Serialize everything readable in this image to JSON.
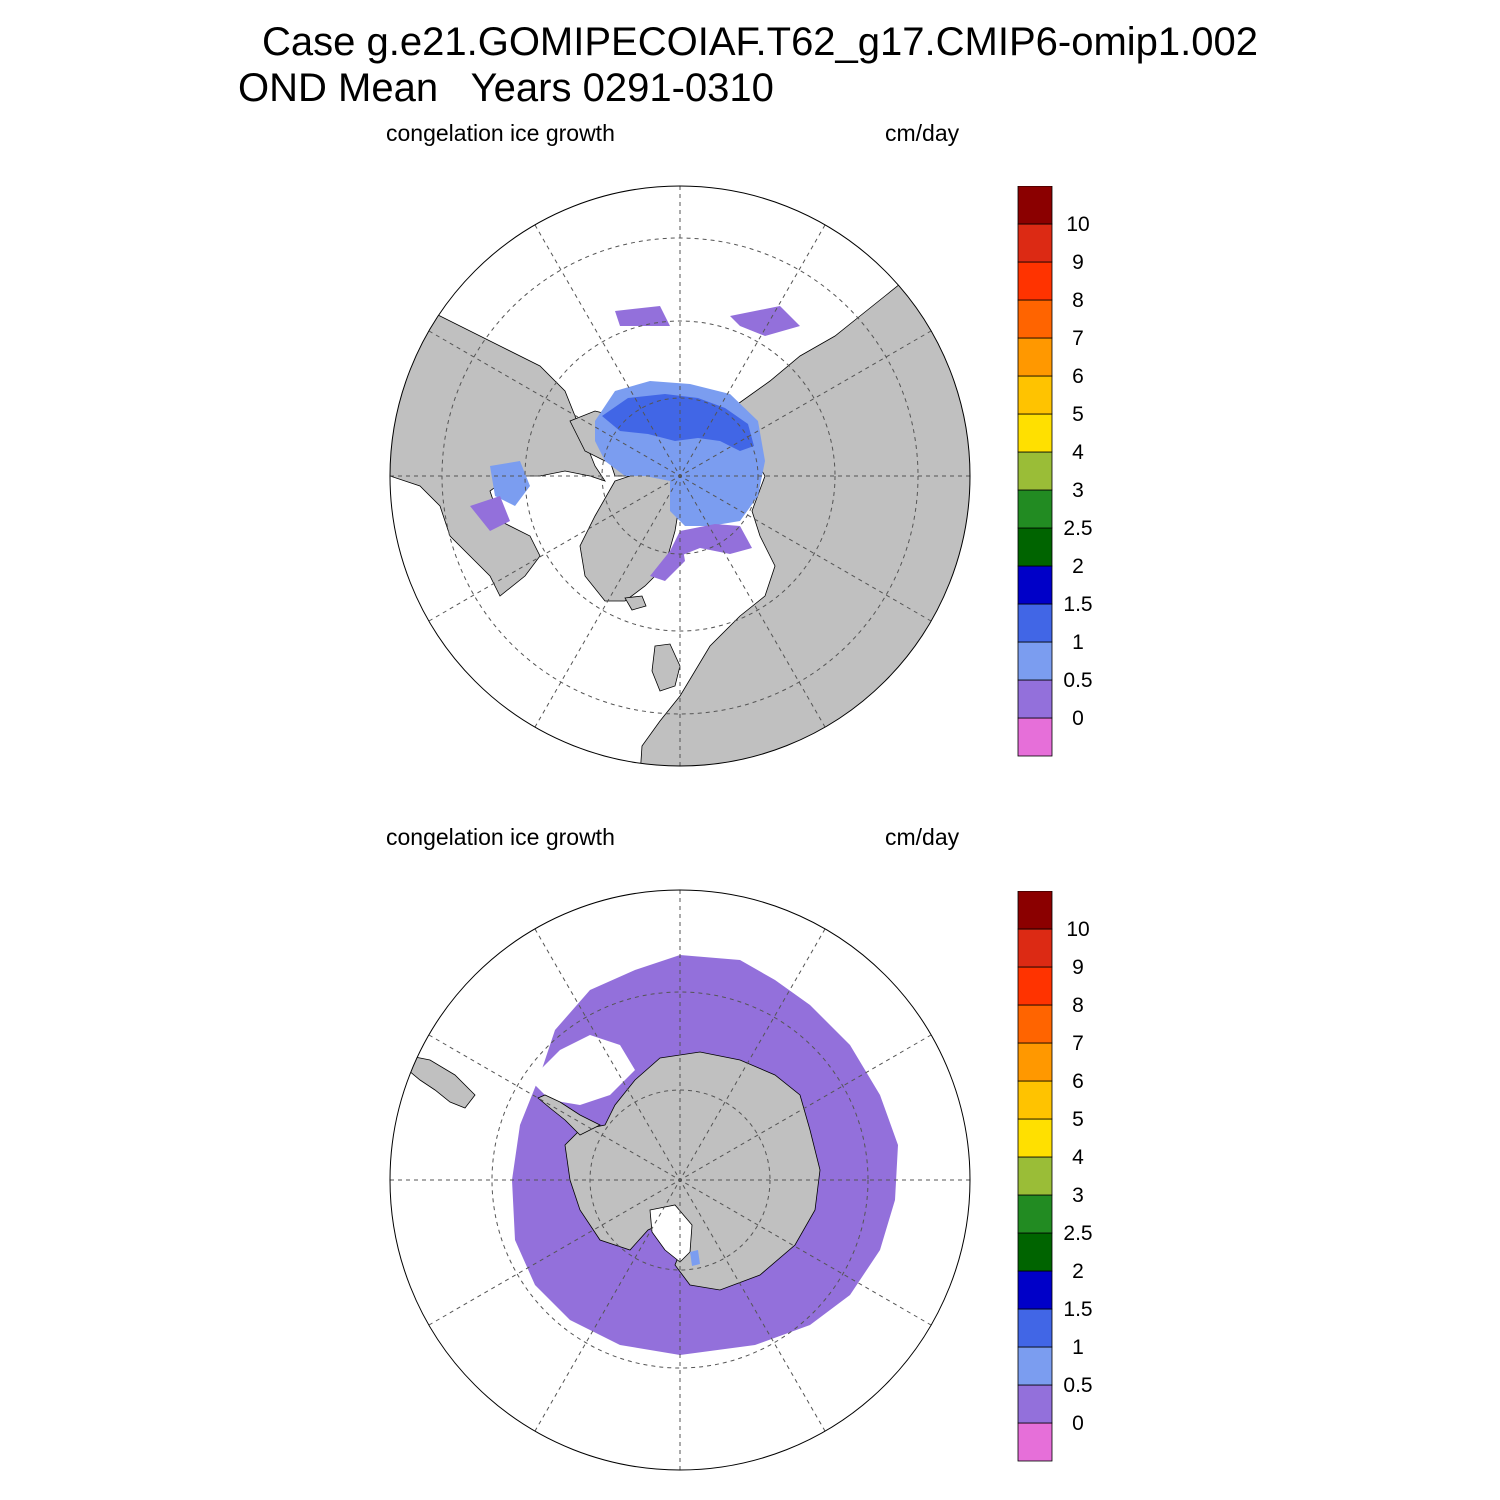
{
  "header": {
    "title_line1": "Case g.e21.GOMIPECOIAF.T62_g17.CMIP6-omip1.002",
    "title_line2": "OND Mean   Years 0291-0310"
  },
  "panels": [
    {
      "id": "north",
      "hemisphere": "north",
      "left_label": "congelation ice growth",
      "right_label": "cm/day"
    },
    {
      "id": "south",
      "hemisphere": "south",
      "left_label": "congelation ice growth",
      "right_label": "cm/day"
    }
  ],
  "colorbar": {
    "boundaries": [
      "0",
      "0.5",
      "1",
      "1.5",
      "2",
      "2.5",
      "3",
      "4",
      "5",
      "6",
      "7",
      "8",
      "9",
      "10"
    ],
    "colors": [
      "#e66fd9",
      "#9370db",
      "#7b9df0",
      "#4166e6",
      "#0000c8",
      "#006400",
      "#228b22",
      "#9abd37",
      "#ffe000",
      "#ffc300",
      "#ff9800",
      "#ff6400",
      "#ff3300",
      "#dc2a14",
      "#8b0000"
    ]
  },
  "colors": {
    "land": "#c0c0c0",
    "ocean": "#ffffff",
    "ice_lowest": "#9370db",
    "ice_low": "#7b9df0",
    "ice_mid": "#4166e6"
  }
}
